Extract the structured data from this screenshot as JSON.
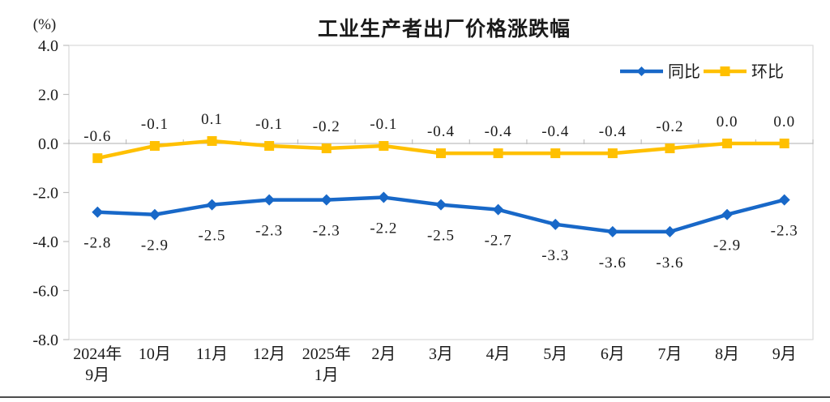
{
  "chart": {
    "title": "工业生产者出厂价格涨跌幅",
    "unit_label": "(%)"
  },
  "chart_data": {
    "type": "line",
    "title": "工业生产者出厂价格涨跌幅",
    "ylabel": "(%)",
    "xlabel": "",
    "categories": [
      "2024年\n9月",
      "10月",
      "11月",
      "12月",
      "2025年\n1月",
      "2月",
      "3月",
      "4月",
      "5月",
      "6月",
      "7月",
      "8月",
      "9月"
    ],
    "series": [
      {
        "name": "同比",
        "color": "#1868c8",
        "marker": "diamond",
        "label_position": "below",
        "values": [
          -2.8,
          -2.9,
          -2.5,
          -2.3,
          -2.3,
          -2.2,
          -2.5,
          -2.7,
          -3.3,
          -3.6,
          -3.6,
          -2.9,
          -2.3
        ]
      },
      {
        "name": "环比",
        "color": "#ffc000",
        "marker": "square",
        "label_position": "above",
        "values": [
          -0.6,
          -0.1,
          0.1,
          -0.1,
          -0.2,
          -0.1,
          -0.4,
          -0.4,
          -0.4,
          -0.4,
          -0.2,
          0.0,
          0.0
        ]
      }
    ],
    "ylim": [
      -8.0,
      4.0
    ],
    "ytick_step": 2.0,
    "yticks": [
      "4.0",
      "2.0",
      "0.0",
      "-2.0",
      "-4.0",
      "-6.0",
      "-8.0"
    ],
    "grid": false,
    "legend_position": "top-right",
    "colors": {
      "plot_border": "#d9d9d9",
      "axis_zero_line": "#bfbfbf",
      "tick": "#bfbfbf",
      "label_text": "#1a1a1a"
    }
  }
}
